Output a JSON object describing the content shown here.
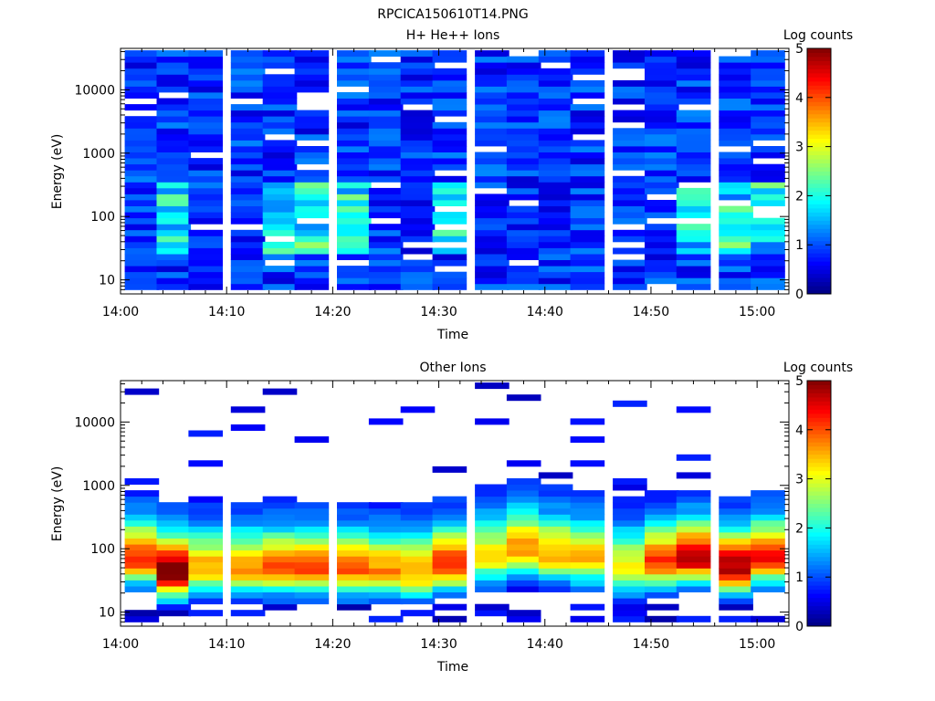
{
  "page_title": "RPCICA150610T14.PNG",
  "chart_data": [
    {
      "type": "heatmap",
      "title": "H+ He++ Ions",
      "xlabel": "Time",
      "ylabel": "Energy (eV)",
      "colorbar_label": "Log counts",
      "x_ticks": [
        "14:00",
        "14:10",
        "14:20",
        "14:30",
        "14:40",
        "14:50",
        "15:00"
      ],
      "y_ticks": [
        "10",
        "100",
        "1000",
        "10000"
      ],
      "colorbar_ticks": [
        "0",
        "1",
        "2",
        "3",
        "4",
        "5"
      ],
      "xlim": [
        "14:00",
        "15:03"
      ],
      "ylim": [
        6,
        45000
      ],
      "yscale": "log",
      "zlim": [
        0,
        5
      ],
      "time_columns": [
        "14:02",
        "14:05",
        "14:08",
        "14:12",
        "14:15",
        "14:18",
        "14:22",
        "14:25",
        "14:28",
        "14:31",
        "14:35",
        "14:38",
        "14:41",
        "14:44",
        "14:48",
        "14:51",
        "14:54",
        "14:58",
        "15:01"
      ],
      "energy_levels": "log-spaced steps from ~7 eV to ~40000 eV",
      "cells_summary": "mostly 0.3–1.3 log counts above 200 eV; enhanced 1.5–2.5 log counts near 30–300 eV around 14:05, 14:14–14:23, 14:32 and 14:54–15:02"
    },
    {
      "type": "heatmap",
      "title": "Other Ions",
      "xlabel": "Time",
      "ylabel": "Energy (eV)",
      "colorbar_label": "Log counts",
      "x_ticks": [
        "14:00",
        "14:10",
        "14:20",
        "14:30",
        "14:40",
        "14:50",
        "15:00"
      ],
      "y_ticks": [
        "10",
        "100",
        "1000",
        "10000"
      ],
      "colorbar_ticks": [
        "0",
        "1",
        "2",
        "3",
        "4",
        "5"
      ],
      "xlim": [
        "14:00",
        "15:03"
      ],
      "ylim": [
        6,
        45000
      ],
      "yscale": "log",
      "zlim": [
        0,
        5
      ],
      "peak_energy_eV": [
        70,
        42,
        50,
        48,
        50,
        48,
        48,
        45,
        42,
        55,
        75,
        100,
        80,
        70,
        50,
        60,
        70,
        50,
        70
      ],
      "peak_log_counts": [
        3.5,
        4.5,
        2.8,
        3.0,
        3.2,
        3.3,
        3.3,
        3.0,
        2.9,
        3.6,
        2.5,
        3.0,
        2.9,
        2.7,
        2.4,
        3.4,
        4.0,
        4.1,
        3.6
      ],
      "cells_summary": "strong band 20–400 eV peaking near 40–100 eV; sparse thin detections above 1000 eV"
    }
  ]
}
